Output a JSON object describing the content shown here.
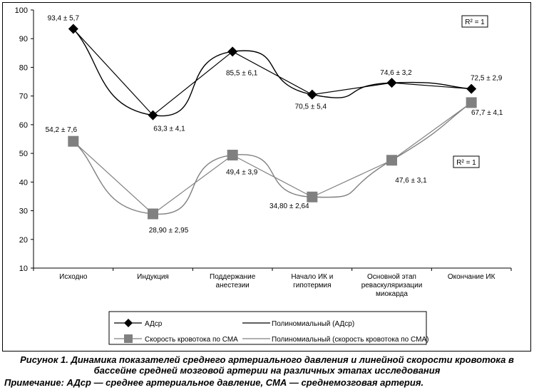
{
  "chart_data": {
    "type": "line",
    "categories": [
      [
        "Исходно"
      ],
      [
        "Индукция"
      ],
      [
        "Поддержание",
        "анестезии"
      ],
      [
        "Начало ИК и",
        "гипотермия"
      ],
      [
        "Основной этап",
        "реваскуляризации",
        "миокарда"
      ],
      [
        "Окончание ИК"
      ]
    ],
    "ylim": [
      10,
      100
    ],
    "yticks": [
      10,
      20,
      30,
      40,
      50,
      60,
      70,
      80,
      90,
      100
    ],
    "grid": false,
    "series": [
      {
        "name": "АДср",
        "values": [
          93.4,
          63.3,
          85.5,
          70.5,
          74.6,
          72.5
        ],
        "labels": [
          "93,4 ± 5,7",
          "63,3 ± 4,1",
          "85,5 ± 6,1",
          "70,5 ± 5,4",
          "74,6 ± 3,2",
          "72,5 ± 2,9"
        ],
        "color": "#000000",
        "marker": "diamond"
      },
      {
        "name": "Скорость кровотока по СМА",
        "values": [
          54.2,
          28.9,
          49.4,
          34.8,
          47.6,
          67.7
        ],
        "labels": [
          "54,2 ± 7,6",
          "28,90 ± 2,95",
          "49,4 ± 3,9",
          "34,80 ± 2,64",
          "47,6 ± 3,1",
          "67,7 ± 4,1"
        ],
        "color": "#808080",
        "marker": "square"
      }
    ],
    "trendlines": [
      {
        "name": "Полиномиальный (АДср)",
        "color": "#000000"
      },
      {
        "name": "Полиномиальный (скорость кровотока по СМА)",
        "color": "#808080"
      }
    ],
    "r2_labels": [
      "R² = 1",
      "R² = 1"
    ],
    "legend_position": "bottom"
  },
  "caption": {
    "line1": "Рисунок 1. Динамика показателей среднего артериального давления и линейной скорости кровотока в",
    "line2": "бассейне средней мозговой артерии на различных этапах исследования",
    "note_label": "Примечание:",
    "note_text": " АДср — среднее артериальное давление, СМА — среднемозговая артерия."
  }
}
